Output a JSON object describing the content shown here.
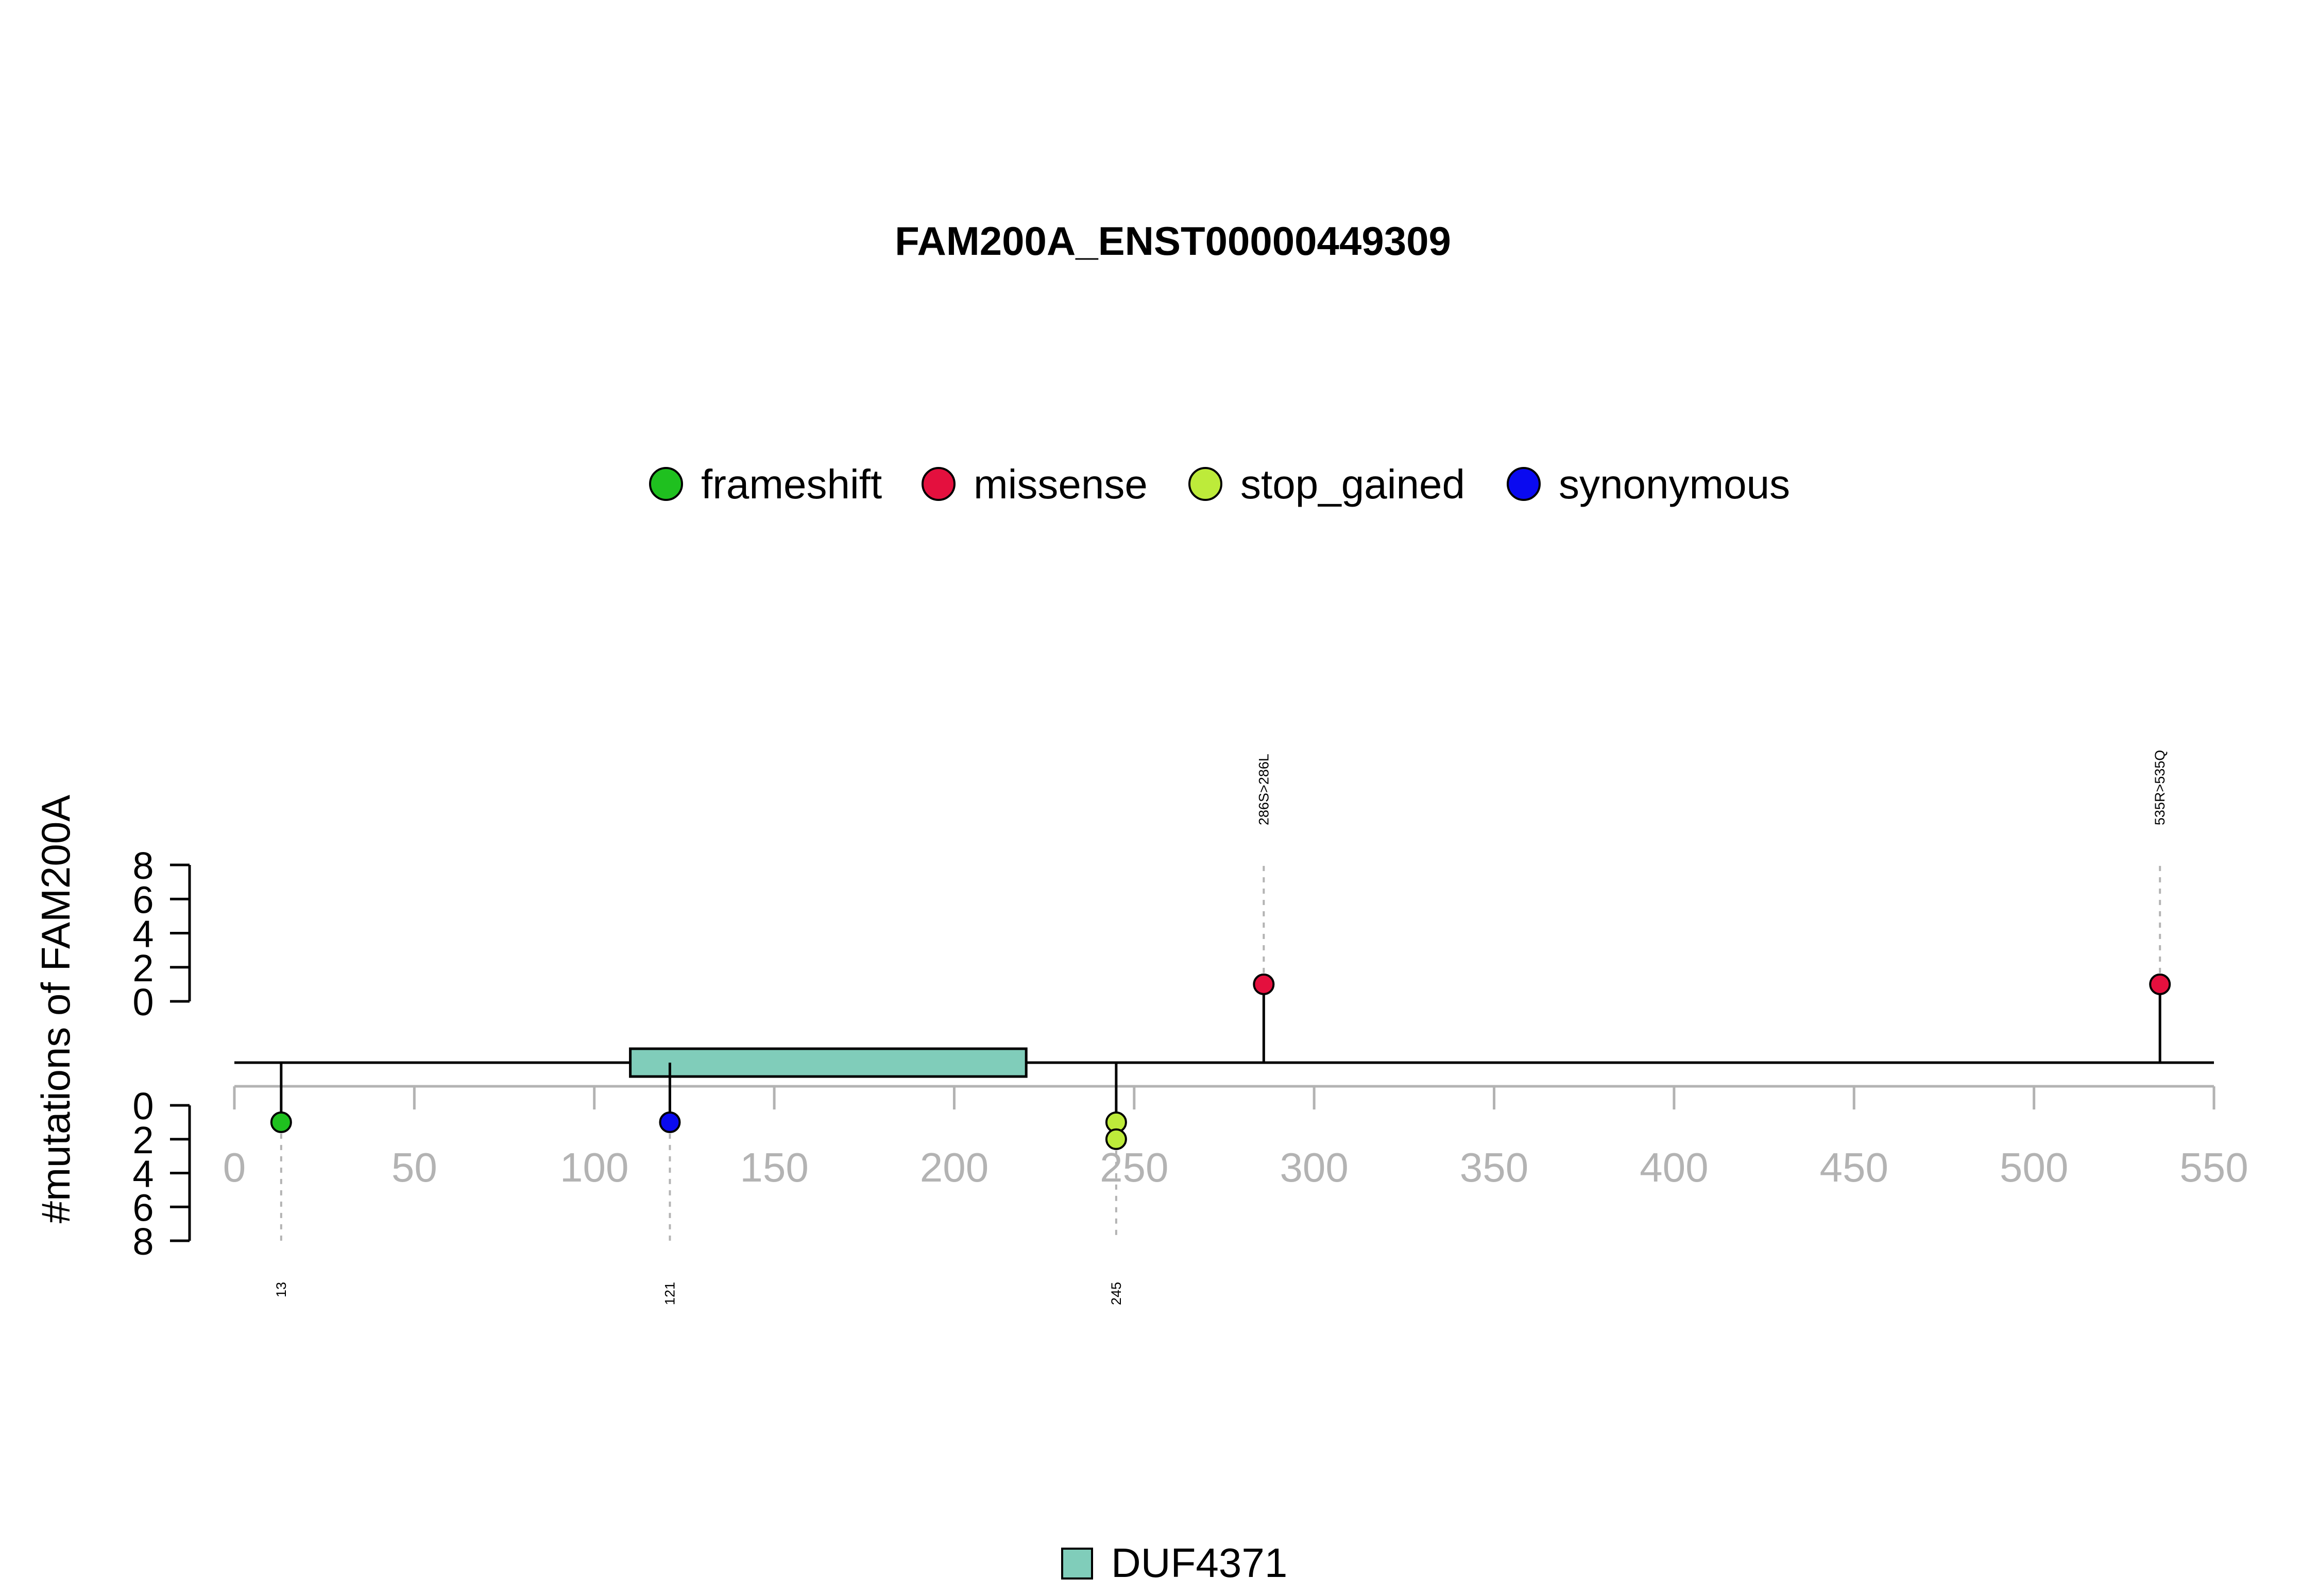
{
  "chart_data": {
    "type": "lollipop",
    "title": "FAM200A_ENST00000449309",
    "ylabel": "#mutations of FAM200A",
    "xlim": [
      0,
      550
    ],
    "x_ticks": [
      "0",
      "50",
      "100",
      "150",
      "200",
      "250",
      "300",
      "350",
      "400",
      "450",
      "500",
      "550"
    ],
    "y_ticks": [
      "0",
      "2",
      "4",
      "6",
      "8"
    ],
    "ylim": [
      0,
      8
    ],
    "legend": [
      {
        "label": "frameshift",
        "color": "#1FC01F"
      },
      {
        "label": "missense",
        "color": "#E4103E"
      },
      {
        "label": "stop_gained",
        "color": "#BDEB3A"
      },
      {
        "label": "synonymous",
        "color": "#0A0AF0"
      }
    ],
    "domains": [
      {
        "name": "DUF4371",
        "start": 110,
        "end": 220,
        "color": "#80CDBA"
      }
    ],
    "mutations_top": [
      {
        "position": 286,
        "label": "286S>286L",
        "type": "missense",
        "count": 1
      },
      {
        "position": 535,
        "label": "535R>535Q",
        "type": "missense",
        "count": 1
      }
    ],
    "mutations_bottom": [
      {
        "position": 13,
        "label": "13",
        "type": "frameshift",
        "count": 1
      },
      {
        "position": 121,
        "label": "121",
        "type": "synonymous",
        "count": 1
      },
      {
        "position": 245,
        "label": "245",
        "type": "stop_gained",
        "count": 2
      }
    ]
  }
}
